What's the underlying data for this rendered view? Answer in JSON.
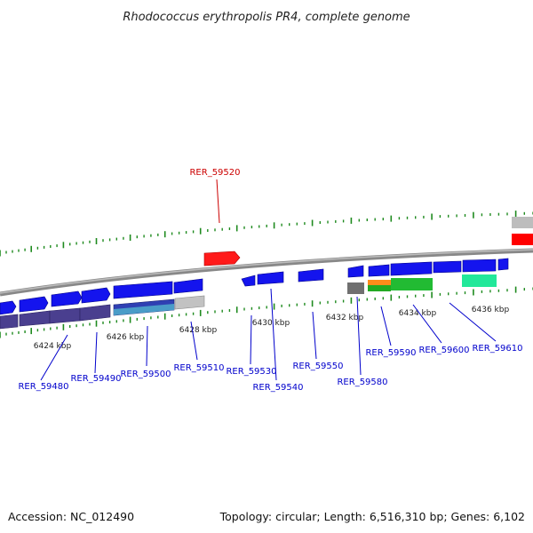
{
  "title": "Rhodococcus erythropolis PR4, complete genome",
  "footer": {
    "accession": "Accession: NC_012490",
    "summary": "Topology: circular; Length: 6,516,310 bp; Genes: 6,102"
  },
  "colors": {
    "backbone": "#8a8a8a",
    "tick": "#1e8a1e",
    "highlight": "#ff0000",
    "label": "#0000cc",
    "highlight_label": "#cc0000"
  },
  "scale_labels": [
    "6424 kbp",
    "6426 kbp",
    "6428 kbp",
    "6430 kbp",
    "6432 kbp",
    "6434 kbp",
    "6436 kbp"
  ],
  "gene_labels": [
    {
      "name": "RER_59480",
      "highlight": false
    },
    {
      "name": "RER_59490",
      "highlight": false
    },
    {
      "name": "RER_59500",
      "highlight": false
    },
    {
      "name": "RER_59510",
      "highlight": false
    },
    {
      "name": "RER_59520",
      "highlight": true
    },
    {
      "name": "RER_59530",
      "highlight": false
    },
    {
      "name": "RER_59540",
      "highlight": false
    },
    {
      "name": "RER_59550",
      "highlight": false
    },
    {
      "name": "RER_59580",
      "highlight": false
    },
    {
      "name": "RER_59590",
      "highlight": false
    },
    {
      "name": "RER_59600",
      "highlight": false
    },
    {
      "name": "RER_59610",
      "highlight": false
    }
  ]
}
